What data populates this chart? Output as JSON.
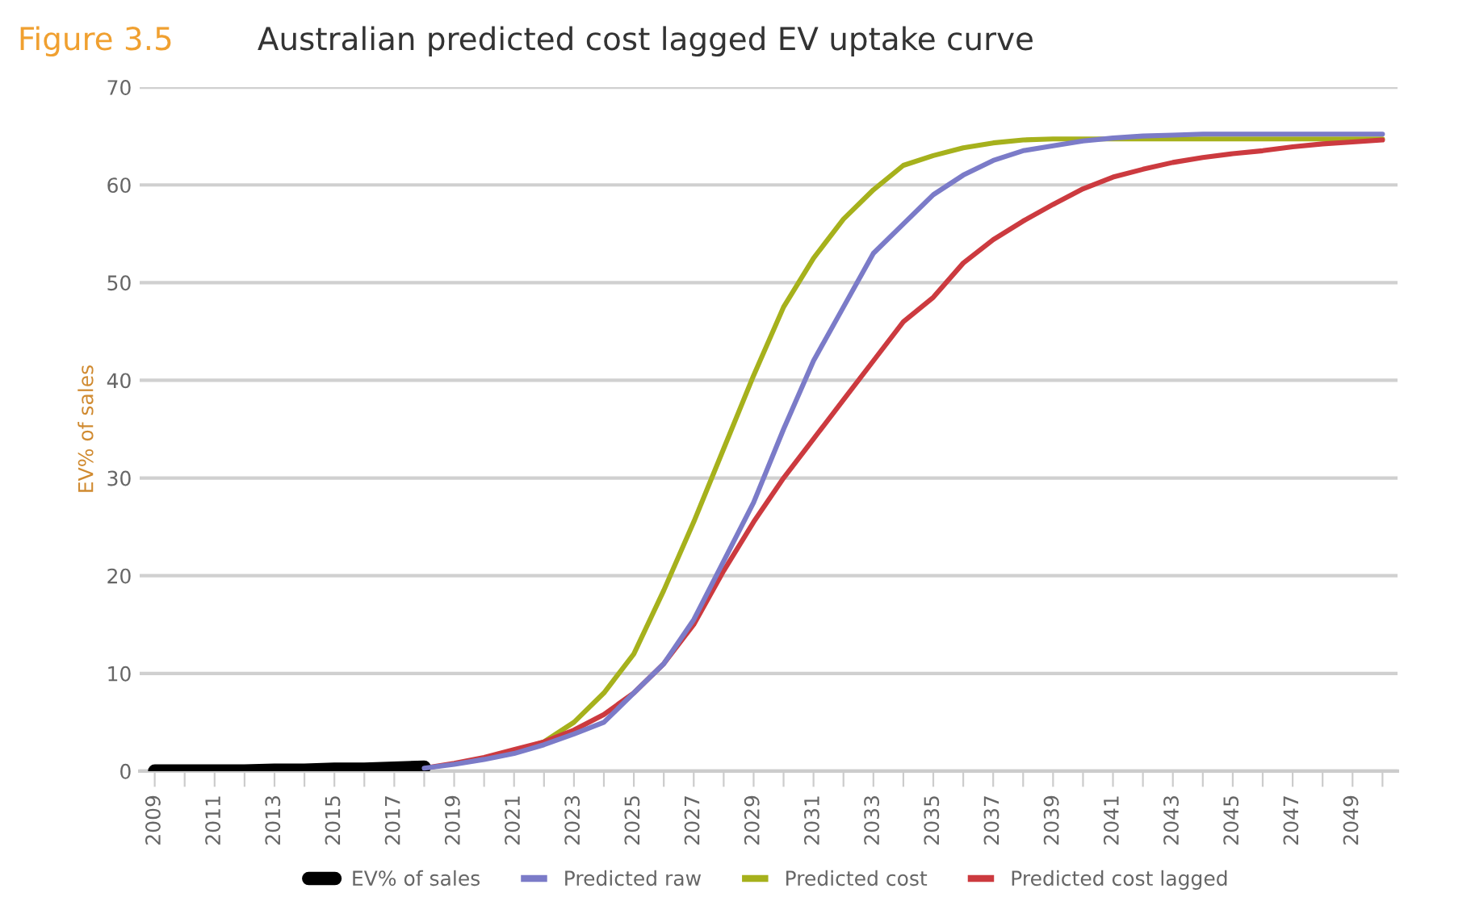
{
  "chart_data": {
    "type": "line",
    "title": "Australian predicted cost lagged EV uptake curve",
    "annotations": [
      "Figure 3.5"
    ],
    "ylabel": "EV% of sales",
    "categories": [
      "2009",
      null,
      "2011",
      null,
      "2013",
      null,
      "2015",
      null,
      "2017",
      null,
      "2019",
      null,
      "2021",
      null,
      "2023",
      null,
      "2025",
      null,
      "2027",
      null,
      "2029",
      null,
      "2031",
      null,
      "2033",
      null,
      "2035",
      null,
      "2037",
      null,
      "2039",
      null,
      "2041",
      null,
      "2043",
      null,
      "2045",
      null,
      "2047",
      null,
      "2049",
      null
    ],
    "ylim": [
      0,
      70
    ],
    "yticks": [
      0,
      10,
      20,
      30,
      40,
      50,
      60,
      70
    ],
    "grid": "y",
    "legend": "bottom",
    "line_style": "solid",
    "marker": "none",
    "series": [
      {
        "name": "EV% of sales",
        "color": "#000000",
        "values": [
          0,
          0,
          0,
          0,
          0.1,
          0.1,
          0.2,
          0.2,
          0.3,
          0.4,
          null,
          null,
          null,
          null,
          null,
          null,
          null,
          null,
          null,
          null,
          null,
          null,
          null,
          null,
          null,
          null,
          null,
          null,
          null,
          null,
          null,
          null,
          null,
          null,
          null,
          null,
          null,
          null,
          null,
          null,
          null,
          null
        ]
      },
      {
        "name": "Predicted raw",
        "color": "#7b7bc8",
        "values": [
          null,
          null,
          null,
          null,
          null,
          null,
          null,
          null,
          null,
          0.3,
          0.7,
          1.2,
          1.8,
          2.7,
          3.8,
          5,
          8,
          11,
          15.5,
          21.5,
          27.5,
          35,
          42,
          47.5,
          53,
          56,
          59,
          61,
          62.5,
          63.5,
          64,
          64.5,
          64.8,
          65,
          65.1,
          65.2,
          65.2,
          65.2,
          65.2,
          65.2,
          65.2,
          65.2
        ]
      },
      {
        "name": "Predicted cost",
        "color": "#a6b11c",
        "values": [
          null,
          null,
          null,
          null,
          null,
          null,
          null,
          null,
          null,
          null,
          null,
          null,
          2,
          3,
          5,
          8,
          12,
          18.5,
          25.5,
          33,
          40.5,
          47.5,
          52.5,
          56.5,
          59.5,
          62,
          63,
          63.8,
          64.3,
          64.6,
          64.7,
          64.7,
          64.7,
          64.7,
          64.7,
          64.7,
          64.7,
          64.7,
          64.7,
          64.7,
          64.7,
          64.7
        ]
      },
      {
        "name": "Predicted cost lagged",
        "color": "#cc3a3f",
        "values": [
          null,
          null,
          null,
          null,
          null,
          null,
          null,
          null,
          null,
          0.3,
          0.8,
          1.4,
          2.2,
          3,
          4.2,
          5.8,
          8,
          11,
          15,
          20.5,
          25.5,
          30,
          34,
          38,
          42,
          46,
          48.5,
          52,
          54.4,
          56.3,
          58,
          59.6,
          60.8,
          61.6,
          62.3,
          62.8,
          63.2,
          63.5,
          63.9,
          64.2,
          64.4,
          64.6
        ]
      }
    ]
  }
}
